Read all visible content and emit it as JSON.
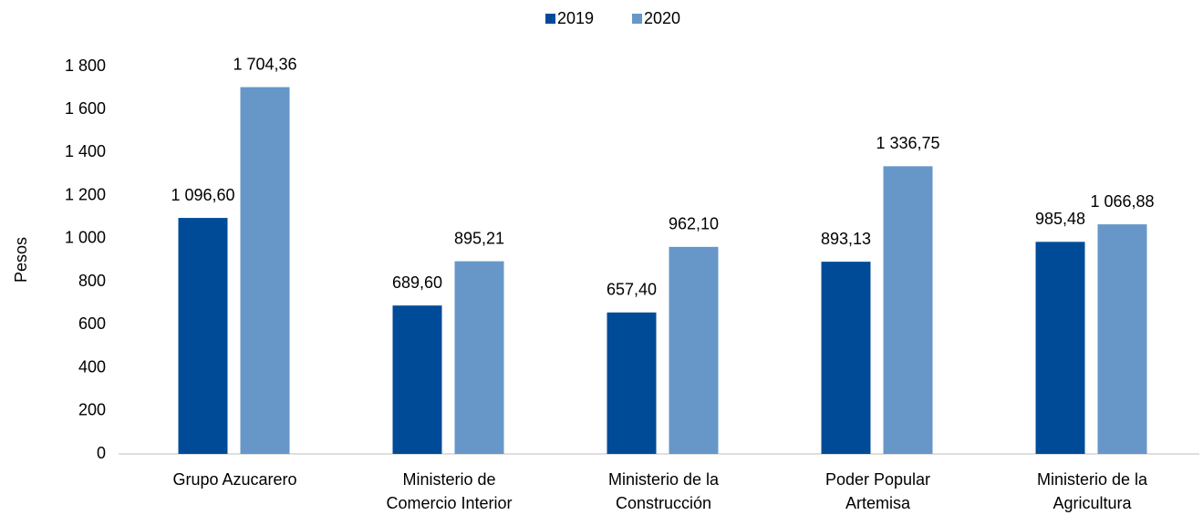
{
  "chart_data": {
    "type": "bar",
    "y_label": "Pesos",
    "categories": [
      "Grupo Azucarero",
      "Ministerio de\nComercio Interior",
      "Ministerio de la\nConstrucción",
      "Poder Popular\nArtemisa",
      "Ministerio de la\nAgricultura"
    ],
    "series": [
      {
        "name": "2019",
        "color": "#004b98",
        "values": [
          1096.6,
          689.6,
          657.4,
          893.13,
          985.48
        ],
        "value_labels": [
          "1 096,60",
          "689,60",
          "657,40",
          "893,13",
          "985,48"
        ]
      },
      {
        "name": "2020",
        "color": "#6797c8",
        "values": [
          1704.36,
          895.21,
          962.1,
          1336.75,
          1066.88
        ],
        "value_labels": [
          "1 704,36",
          "895,21",
          "962,10",
          "1 336,75",
          "1 066,88"
        ]
      }
    ],
    "ylim": [
      0,
      1800
    ],
    "yticks": [
      0,
      200,
      400,
      600,
      800,
      {
        "value": 1000,
        "label": "1 000"
      },
      {
        "value": 1200,
        "label": "1 200"
      },
      {
        "value": 1400,
        "label": "1 400"
      },
      {
        "value": 1600,
        "label": "1 600"
      },
      {
        "value": 1800,
        "label": "1 800"
      }
    ],
    "grid": false,
    "legend": "top"
  }
}
